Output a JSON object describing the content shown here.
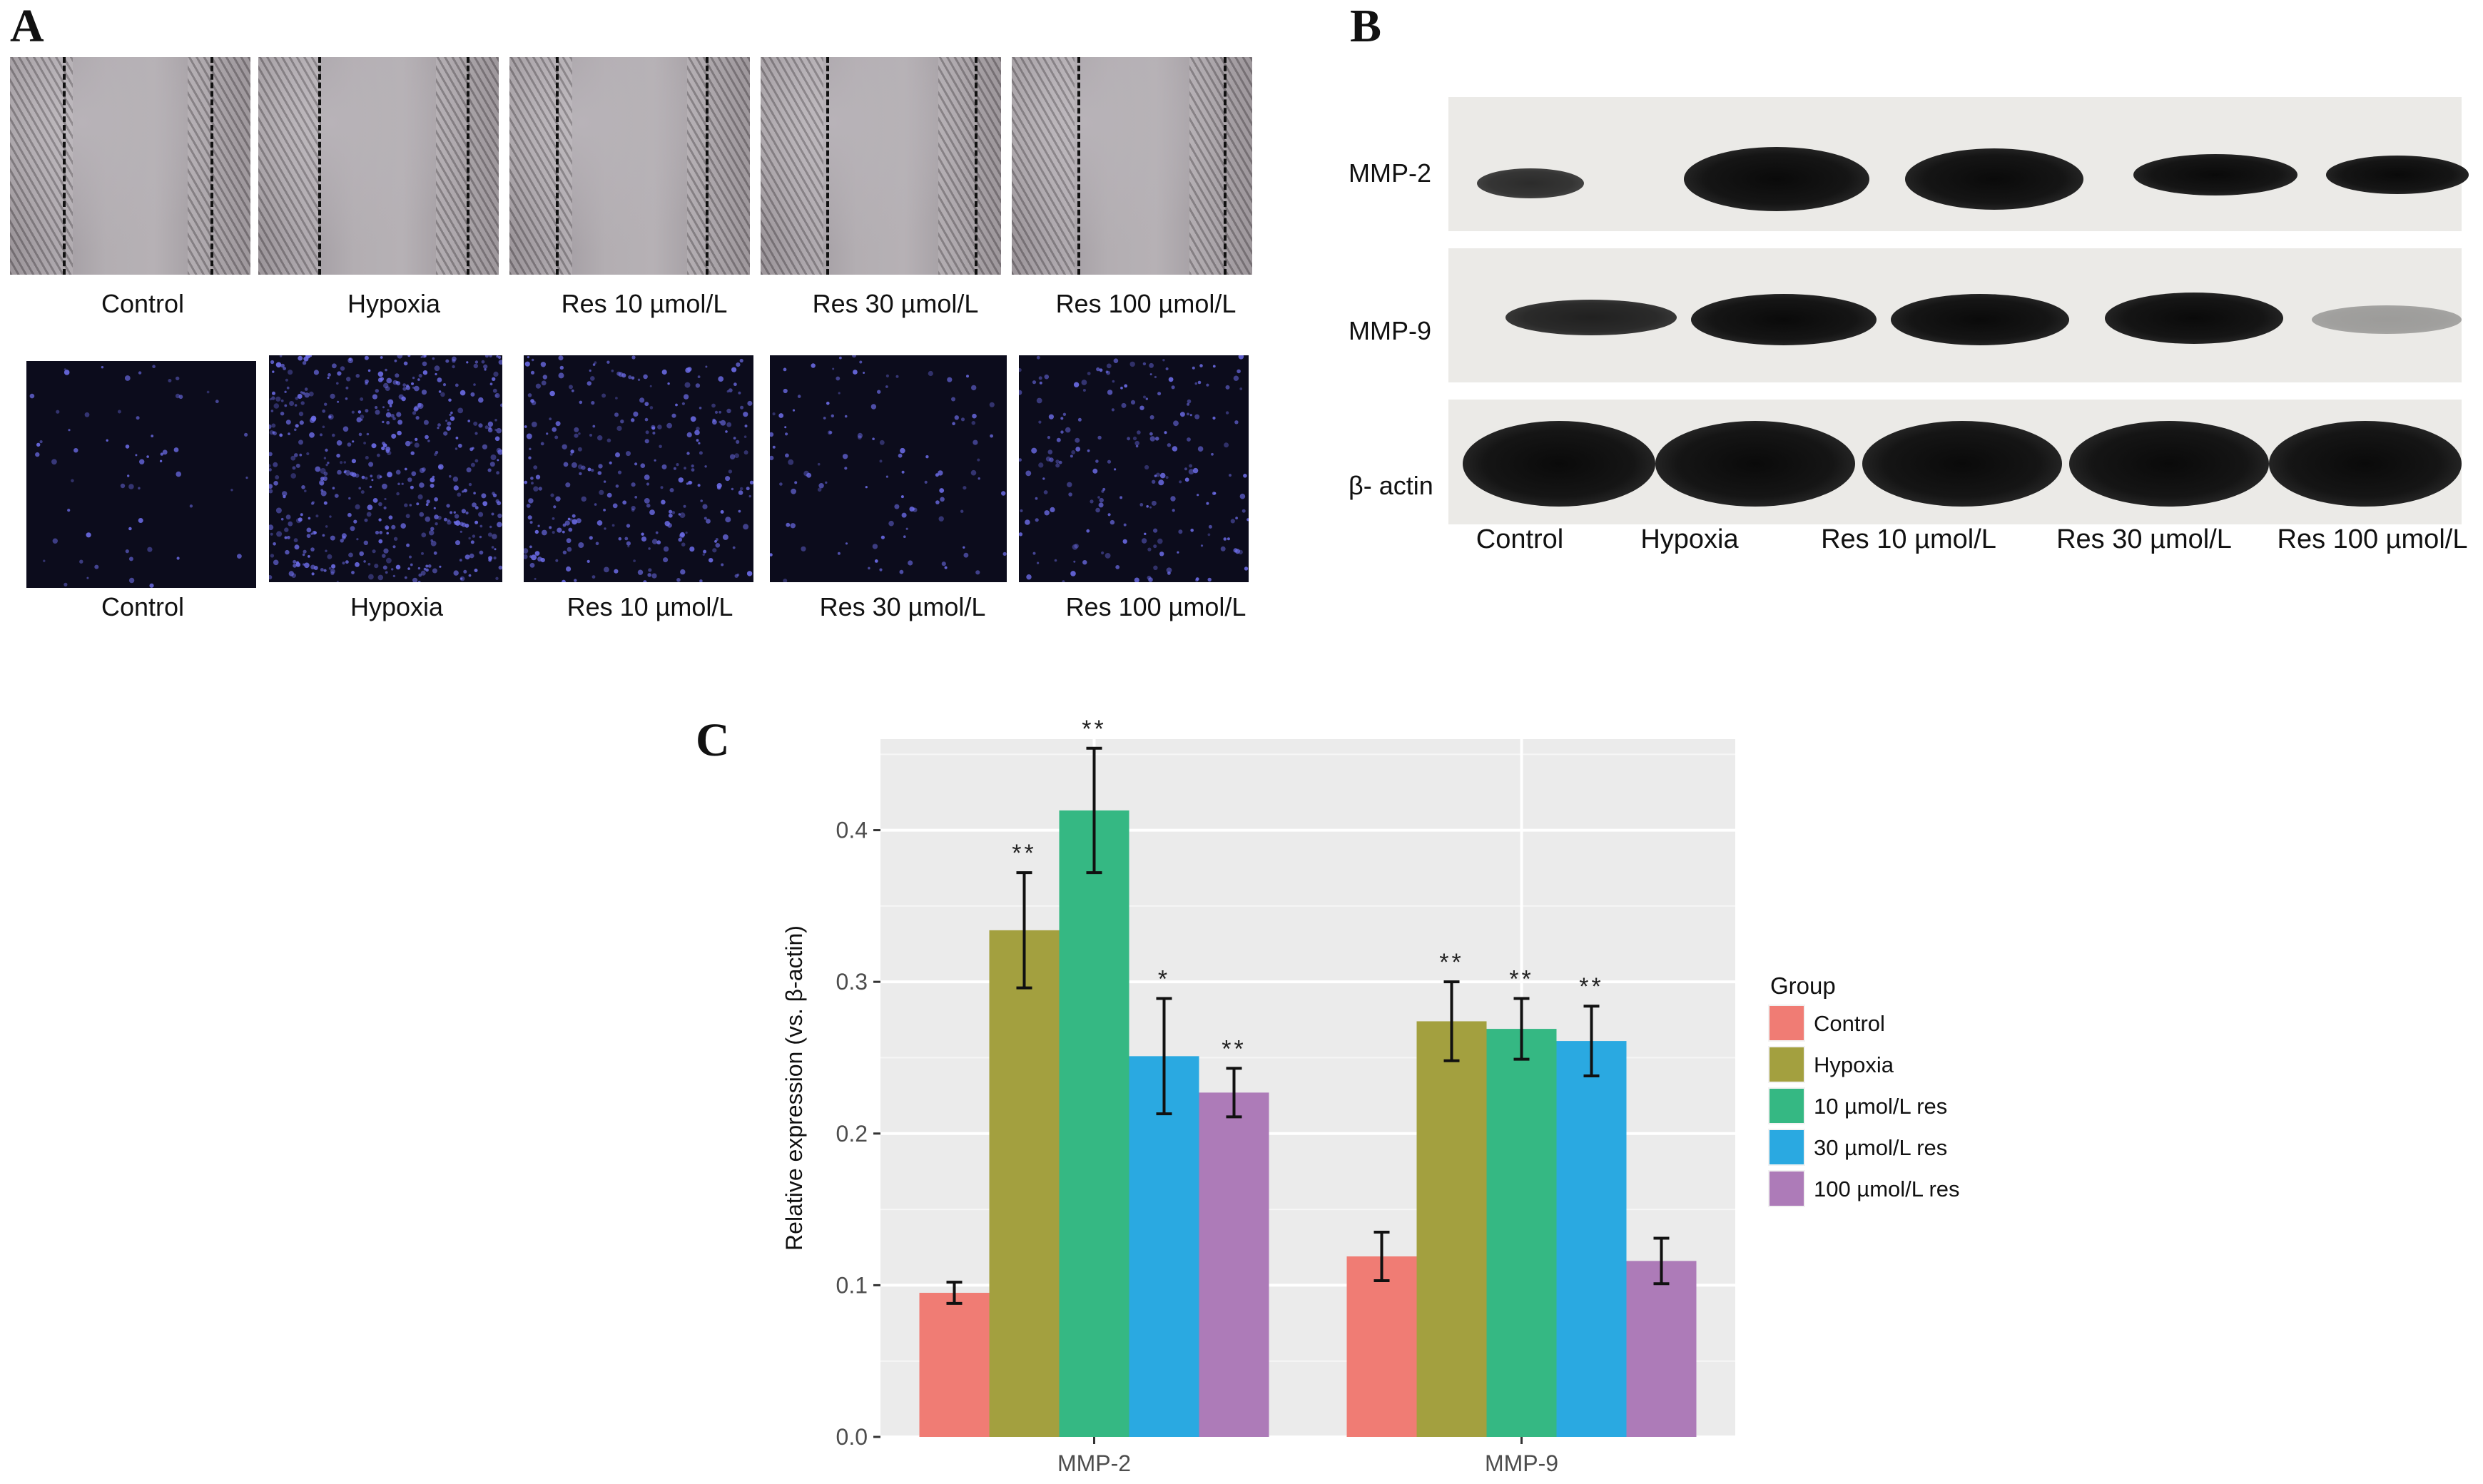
{
  "panels": {
    "a_letter": "A",
    "b_letter": "B",
    "c_letter": "C"
  },
  "panel_a": {
    "top_labels": [
      "Control",
      "Hypoxia",
      "Res 10 µmol/L",
      "Res 30 µmol/L",
      "Res 100 µmol/L"
    ],
    "bottom_labels": [
      "Control",
      "Hypoxia",
      "Res 10 µmol/L",
      "Res 30 µmol/L",
      "Res 100 µmol/L"
    ]
  },
  "panel_b": {
    "row_labels": [
      "MMP-2",
      "MMP-9",
      "β- actin"
    ],
    "lane_labels": [
      "Control",
      "Hypoxia",
      "Res 10 µmol/L",
      "Res 30 µmol/L",
      "Res 100 µmol/L"
    ]
  },
  "chart_data": {
    "type": "bar",
    "categories": [
      "MMP-2",
      "MMP-9"
    ],
    "ylabel": "Relative expression (vs. β-actin)",
    "xlabel": "",
    "ylim": [
      0,
      0.46
    ],
    "yticks": [
      "0.0",
      "0.1",
      "0.2",
      "0.3",
      "0.4"
    ],
    "grid": true,
    "legend_title": "Group",
    "legend_position": "right",
    "series": [
      {
        "name": "Control",
        "color": "#f07c74",
        "values": [
          0.095,
          0.119
        ],
        "errors": [
          0.007,
          0.016
        ],
        "sig": [
          "",
          ""
        ]
      },
      {
        "name": "Hypoxia",
        "color": "#a3a03f",
        "values": [
          0.334,
          0.274
        ],
        "errors": [
          0.038,
          0.026
        ],
        "sig": [
          "**",
          "**"
        ]
      },
      {
        "name": "10 µmol/L res",
        "color": "#35b883",
        "values": [
          0.413,
          0.269
        ],
        "errors": [
          0.041,
          0.02
        ],
        "sig": [
          "**",
          "**"
        ]
      },
      {
        "name": "30 µmol/L res",
        "color": "#2aa9e1",
        "values": [
          0.251,
          0.261
        ],
        "errors": [
          0.038,
          0.023
        ],
        "sig": [
          "*",
          "**"
        ]
      },
      {
        "name": "100 µmol/L res",
        "color": "#ad7bb8",
        "values": [
          0.227,
          0.116
        ],
        "errors": [
          0.016,
          0.015
        ],
        "sig": [
          "**",
          ""
        ]
      }
    ]
  }
}
